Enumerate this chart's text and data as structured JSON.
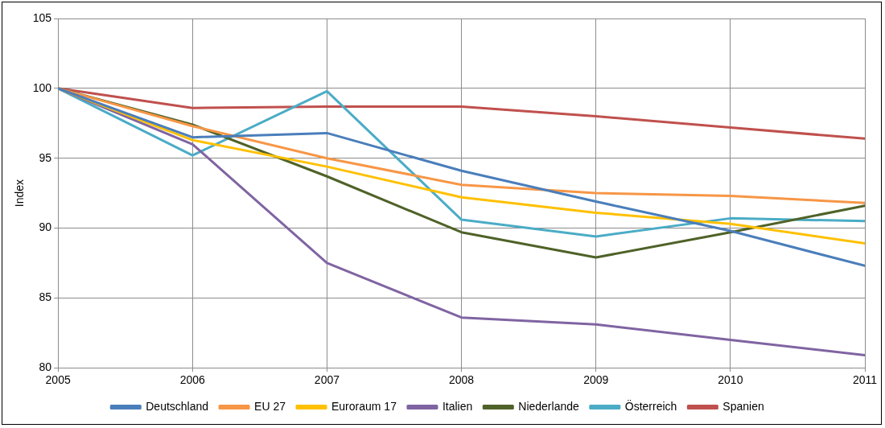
{
  "chart_data": {
    "type": "line",
    "ylabel": "Index",
    "x": [
      2005,
      2006,
      2007,
      2008,
      2009,
      2010,
      2011
    ],
    "xlim": [
      2005,
      2011
    ],
    "xticks": [
      2005,
      2006,
      2007,
      2008,
      2009,
      2010,
      2011
    ],
    "ylim": [
      80,
      105
    ],
    "yticks": [
      80,
      85,
      90,
      95,
      100,
      105
    ],
    "grid": true,
    "legend": "bottom",
    "marker": "none",
    "line_style": "solid",
    "series": [
      {
        "name": "Deutschland",
        "color": "#4a7ebb",
        "values": [
          100,
          96.5,
          96.8,
          94.1,
          91.9,
          89.8,
          87.3
        ]
      },
      {
        "name": "EU 27",
        "color": "#f79646",
        "values": [
          100,
          97.3,
          95.0,
          93.1,
          92.5,
          92.3,
          91.8
        ]
      },
      {
        "name": "Euroraum 17",
        "color": "#ffc000",
        "values": [
          100,
          96.3,
          94.4,
          92.2,
          91.1,
          90.3,
          88.9
        ]
      },
      {
        "name": "Italien",
        "color": "#8064a2",
        "values": [
          100,
          96.0,
          87.5,
          83.6,
          83.1,
          82.0,
          80.9
        ]
      },
      {
        "name": "Niederlande",
        "color": "#4f6228",
        "values": [
          100,
          97.4,
          93.7,
          89.7,
          87.9,
          89.7,
          91.6
        ]
      },
      {
        "name": "Österreich",
        "color": "#4bacc6",
        "values": [
          100,
          95.2,
          99.8,
          90.6,
          89.4,
          90.7,
          90.5
        ]
      },
      {
        "name": "Spanien",
        "color": "#c0504d",
        "values": [
          100,
          98.6,
          98.7,
          98.7,
          98.0,
          97.2,
          96.4
        ]
      }
    ]
  }
}
